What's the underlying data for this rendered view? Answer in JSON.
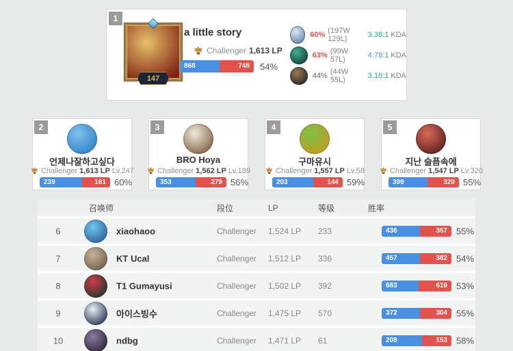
{
  "colors": {
    "bar_blue": "#4a90e2",
    "bar_red": "#e2534d",
    "winrate_red": "#e2534d",
    "winrate_gray": "#8a9096",
    "kda_teal": "#1fa99c",
    "kda_blue": "#4a90e2"
  },
  "top_player": {
    "rank": "1",
    "level": "147",
    "name": "a little story",
    "tier": "Challenger",
    "lp": "1,613 LP",
    "wins": 868,
    "losses": 748,
    "winrate": "54%",
    "avatar_colors": [
      "#e8c06a",
      "#7e1f12"
    ],
    "champions": [
      {
        "winrate": "60%",
        "record": "(197W 129L)",
        "kda": "3.38:1",
        "kda_label": "KDA",
        "winrate_color": "#e2534d",
        "kda_color": "#1fa99c",
        "avatar_colors": [
          "#dce8f0",
          "#5a7ca0"
        ]
      },
      {
        "winrate": "63%",
        "record": "(99W 57L)",
        "kda": "4.78:1",
        "kda_label": "KDA",
        "winrate_color": "#e2534d",
        "kda_color": "#4a90e2",
        "avatar_colors": [
          "#3fae8f",
          "#123c35"
        ]
      },
      {
        "winrate": "44%",
        "record": "(44W 55L)",
        "kda": "3.18:1",
        "kda_label": "KDA",
        "winrate_color": "#8a9096",
        "kda_color": "#1fa99c",
        "avatar_colors": [
          "#9a7a52",
          "#23202a"
        ]
      }
    ]
  },
  "cards": [
    {
      "rank": "2",
      "name": "언제나잘하고싶다",
      "tier": "Challenger",
      "lp": "1,613 LP",
      "level": "Lv.247",
      "wins": 239,
      "losses": 161,
      "winrate": "60%",
      "avatar_colors": [
        "#7ec3ee",
        "#2b7cc4"
      ]
    },
    {
      "rank": "3",
      "name": "BRO Hoya",
      "tier": "Challenger",
      "lp": "1,562 LP",
      "level": "Lv.189",
      "wins": 353,
      "losses": 279,
      "winrate": "56%",
      "avatar_colors": [
        "#f0e8da",
        "#7a5a3a"
      ]
    },
    {
      "rank": "4",
      "name": "구마유시",
      "tier": "Challenger",
      "lp": "1,557 LP",
      "level": "Lv.58",
      "wins": 203,
      "losses": 144,
      "winrate": "59%",
      "avatar_colors": [
        "#7cc144",
        "#c89a20"
      ]
    },
    {
      "rank": "5",
      "name": "지난 슬픔속에",
      "tier": "Challenger",
      "lp": "1,547 LP",
      "level": "Lv.320",
      "wins": 399,
      "losses": 320,
      "winrate": "55%",
      "avatar_colors": [
        "#d86a5a",
        "#551a1a"
      ]
    }
  ],
  "table": {
    "headers": {
      "summoner": "召唤师",
      "tier": "段位",
      "lp": "LP",
      "level": "等级",
      "winrate": "胜率"
    },
    "rows": [
      {
        "rank": "6",
        "name": "xiaohaoo",
        "tier": "Challenger",
        "lp": "1,524 LP",
        "level": "233",
        "wins": 436,
        "losses": 357,
        "winrate": "55%",
        "avatar_colors": [
          "#6ec6e8",
          "#2a5a9a"
        ]
      },
      {
        "rank": "7",
        "name": "KT Ucal",
        "tier": "Challenger",
        "lp": "1,512 LP",
        "level": "336",
        "wins": 457,
        "losses": 382,
        "winrate": "54%",
        "avatar_colors": [
          "#c9b39a",
          "#6a5a48"
        ]
      },
      {
        "rank": "8",
        "name": "T1 Gumayusi",
        "tier": "Challenger",
        "lp": "1,502 LP",
        "level": "392",
        "wins": 683,
        "losses": 616,
        "winrate": "53%",
        "avatar_colors": [
          "#d03a4a",
          "#0f3a28"
        ]
      },
      {
        "rank": "9",
        "name": "아이스빙수",
        "tier": "Challenger",
        "lp": "1,475 LP",
        "level": "570",
        "wins": 372,
        "losses": 304,
        "winrate": "55%",
        "avatar_colors": [
          "#e8f0f4",
          "#1a2a4a"
        ]
      },
      {
        "rank": "10",
        "name": "ndbg",
        "tier": "Challenger",
        "lp": "1,471 LP",
        "level": "61",
        "wins": 208,
        "losses": 153,
        "winrate": "58%",
        "avatar_colors": [
          "#8a7aa0",
          "#2a2030"
        ]
      }
    ]
  }
}
